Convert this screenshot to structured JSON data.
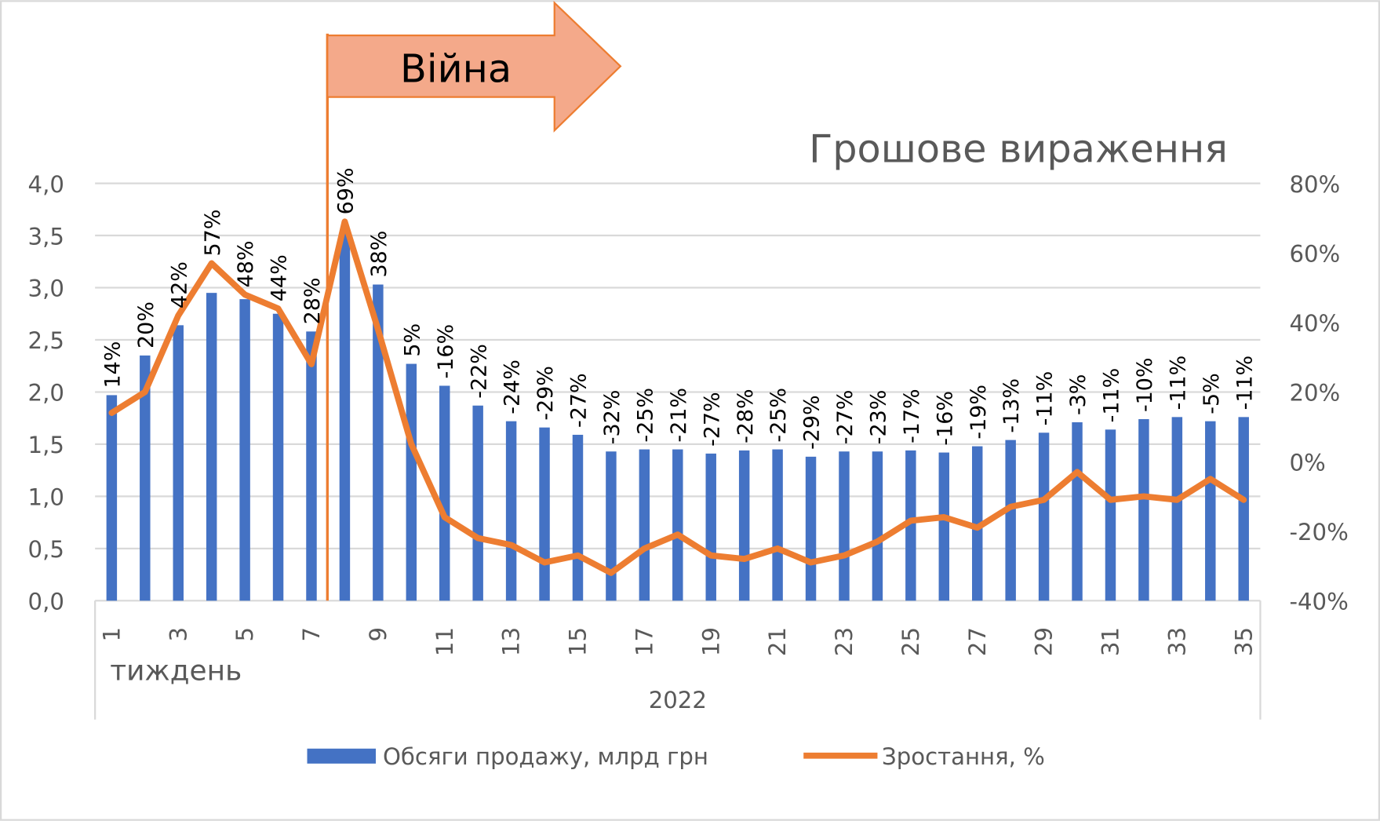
{
  "chart_data": {
    "type": "bar+line",
    "title": "Грошове вираження",
    "annotation": "Війна",
    "xlabel": "тиждень",
    "year_label": "2022",
    "categories": [
      1,
      2,
      3,
      4,
      5,
      6,
      7,
      8,
      9,
      10,
      11,
      12,
      13,
      14,
      15,
      16,
      17,
      18,
      19,
      20,
      21,
      22,
      23,
      24,
      25,
      26,
      27,
      28,
      29,
      30,
      31,
      32,
      33,
      34,
      35
    ],
    "x_tick_labels": [
      "1",
      "3",
      "5",
      "7",
      "9",
      "11",
      "13",
      "15",
      "17",
      "19",
      "21",
      "23",
      "25",
      "27",
      "29",
      "31",
      "33",
      "35"
    ],
    "y_left": {
      "ylim": [
        0,
        4
      ],
      "ticks": [
        "0,0",
        "0,5",
        "1,0",
        "1,5",
        "2,0",
        "2,5",
        "3,0",
        "3,5",
        "4,0"
      ]
    },
    "y_right": {
      "ylim": [
        -40,
        80
      ],
      "ticks": [
        "-40%",
        "-20%",
        "0%",
        "20%",
        "40%",
        "60%",
        "80%"
      ]
    },
    "series": [
      {
        "name": "Обсяги продажу, млрд грн",
        "type": "bar",
        "color": "#4472C4",
        "axis": "left",
        "values": [
          1.97,
          2.35,
          2.64,
          2.95,
          2.89,
          2.75,
          2.58,
          3.52,
          3.03,
          2.27,
          2.06,
          1.87,
          1.72,
          1.66,
          1.59,
          1.43,
          1.45,
          1.45,
          1.41,
          1.44,
          1.45,
          1.38,
          1.43,
          1.43,
          1.44,
          1.42,
          1.48,
          1.54,
          1.61,
          1.71,
          1.64,
          1.74,
          1.76,
          1.72,
          1.76
        ]
      },
      {
        "name": "Зростання, %",
        "type": "line",
        "color": "#ED7D31",
        "axis": "right",
        "values": [
          14,
          20,
          42,
          57,
          48,
          44,
          28,
          69,
          38,
          5,
          -16,
          -22,
          -24,
          -29,
          -27,
          -32,
          -25,
          -21,
          -27,
          -28,
          -25,
          -29,
          -27,
          -23,
          -17,
          -16,
          -19,
          -13,
          -11,
          -3,
          -11,
          -10,
          -11,
          -5,
          -11
        ],
        "labels": [
          "14%",
          "20%",
          "42%",
          "57%",
          "48%",
          "44%",
          "28%",
          "69%",
          "38%",
          "5%",
          "-16%",
          "-22%",
          "-24%",
          "-29%",
          "-27%",
          "-32%",
          "-25%",
          "-21%",
          "-27%",
          "-28%",
          "-25%",
          "-29%",
          "-27%",
          "-23%",
          "-17%",
          "-16%",
          "-19%",
          "-13%",
          "-11%",
          "-3%",
          "-11%",
          "-10%",
          "-11%",
          "-5%",
          "-11%"
        ]
      }
    ],
    "legend": "bottom",
    "grid": true
  }
}
